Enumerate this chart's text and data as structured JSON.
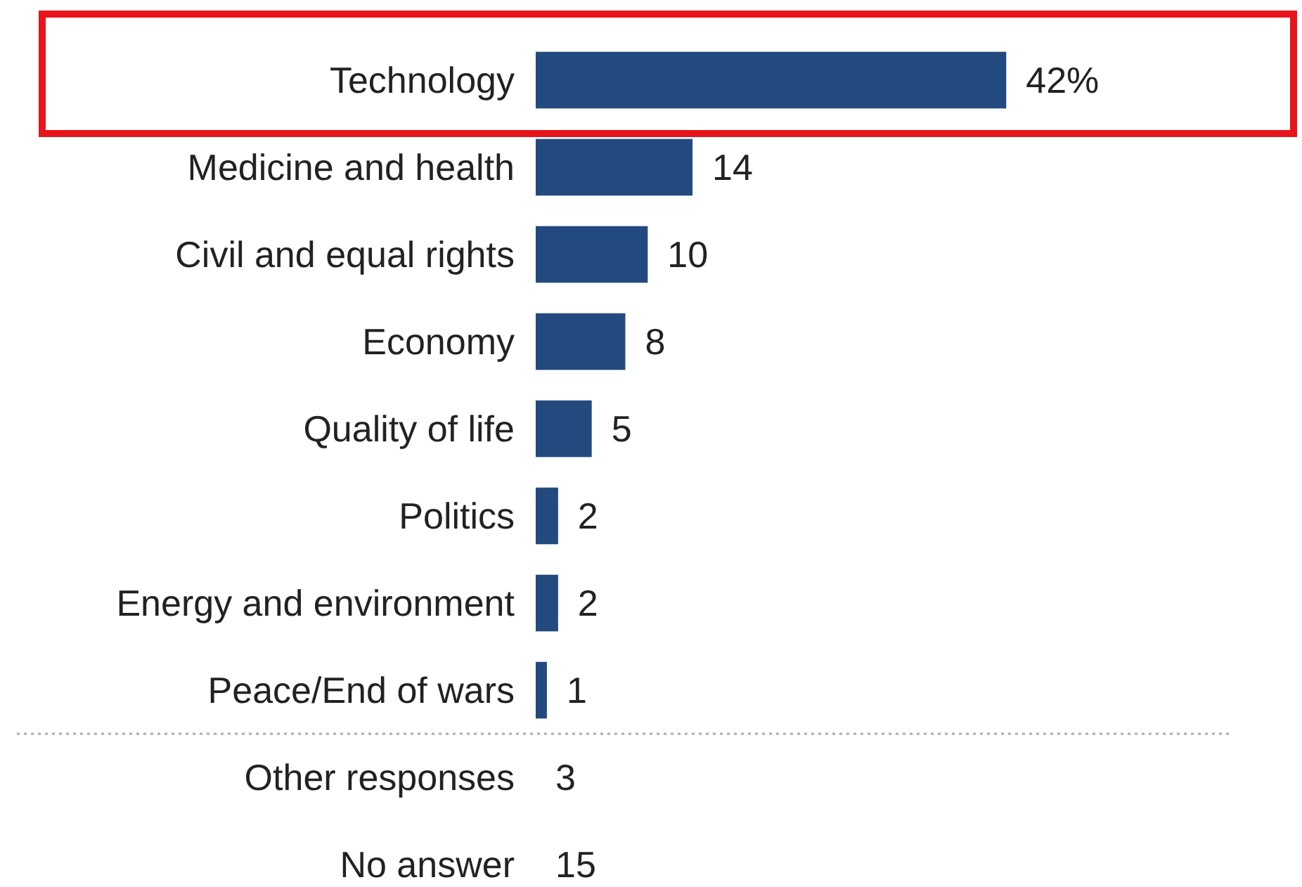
{
  "chart_data": {
    "type": "bar",
    "orientation": "horizontal",
    "categories": [
      "Technology",
      "Medicine and health",
      "Civil and equal rights",
      "Economy",
      "Quality of life",
      "Politics",
      "Energy and environment",
      "Peace/End of wars",
      "Other responses",
      "No answer"
    ],
    "values": [
      42,
      14,
      10,
      8,
      5,
      2,
      2,
      1,
      null,
      null
    ],
    "value_labels": [
      "42%",
      "14",
      "10",
      "8",
      "5",
      "2",
      "2",
      "1",
      "3",
      "15"
    ],
    "color": "#234a7e",
    "xlim": [
      0,
      62
    ]
  }
}
